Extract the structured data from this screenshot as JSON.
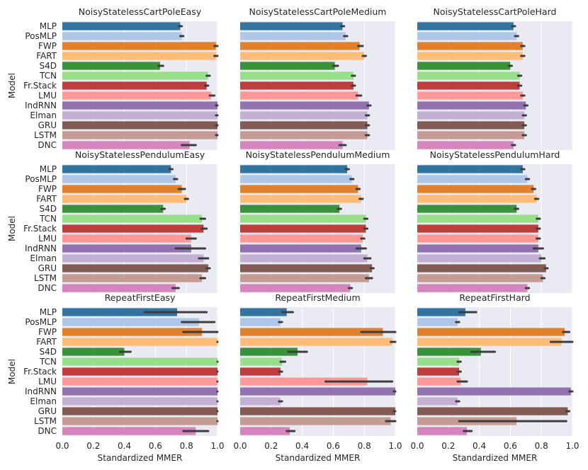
{
  "chart_data": {
    "type": "bar",
    "orientation": "horizontal",
    "grid": true,
    "xlim": [
      0,
      1.0
    ],
    "xticks": [
      "0.0",
      "0.2",
      "0.4",
      "0.6",
      "0.8",
      "1.0"
    ],
    "xlabel": "Standardized MMER",
    "ylabel": "Model",
    "categories": [
      "MLP",
      "PosMLP",
      "FWP",
      "FART",
      "S4D",
      "TCN",
      "Fr.Stack",
      "LMU",
      "IndRNN",
      "Elman",
      "GRU",
      "LSTM",
      "DNC"
    ],
    "colors": [
      "#3274a1",
      "#aec7e8",
      "#e1812c",
      "#ffbb78",
      "#3a923a",
      "#98df8a",
      "#c03d3e",
      "#ff9896",
      "#9372b2",
      "#c5b0d5",
      "#845b53",
      "#c49c94",
      "#d684bd"
    ],
    "panels": [
      {
        "title": "NoisyStatelessCartPoleEasy",
        "values": [
          0.76,
          0.77,
          0.99,
          0.99,
          0.63,
          0.94,
          0.93,
          0.96,
          1.0,
          1.0,
          1.0,
          1.0,
          0.82
        ],
        "ci": [
          [
            0.75,
            0.77
          ],
          [
            0.76,
            0.78
          ],
          [
            0.98,
            1.0
          ],
          [
            0.98,
            1.0
          ],
          [
            0.62,
            0.65
          ],
          [
            0.93,
            0.95
          ],
          [
            0.92,
            0.94
          ],
          [
            0.95,
            0.98
          ],
          [
            0.99,
            1.0
          ],
          [
            0.99,
            1.0
          ],
          [
            0.99,
            1.0
          ],
          [
            0.99,
            1.0
          ],
          [
            0.77,
            0.86
          ]
        ]
      },
      {
        "title": "NoisyStatelessCartPoleMedium",
        "values": [
          0.66,
          0.68,
          0.77,
          0.8,
          0.61,
          0.73,
          0.73,
          0.76,
          0.83,
          0.82,
          0.82,
          0.82,
          0.66
        ],
        "ci": [
          [
            0.65,
            0.67
          ],
          [
            0.67,
            0.69
          ],
          [
            0.76,
            0.79
          ],
          [
            0.79,
            0.81
          ],
          [
            0.6,
            0.63
          ],
          [
            0.72,
            0.74
          ],
          [
            0.72,
            0.74
          ],
          [
            0.75,
            0.78
          ],
          [
            0.82,
            0.84
          ],
          [
            0.81,
            0.83
          ],
          [
            0.81,
            0.83
          ],
          [
            0.81,
            0.83
          ],
          [
            0.64,
            0.68
          ]
        ]
      },
      {
        "title": "NoisyStatelessCartPoleHard",
        "values": [
          0.62,
          0.64,
          0.68,
          0.68,
          0.6,
          0.66,
          0.66,
          0.68,
          0.7,
          0.69,
          0.69,
          0.69,
          0.62
        ],
        "ci": [
          [
            0.61,
            0.63
          ],
          [
            0.63,
            0.65
          ],
          [
            0.67,
            0.69
          ],
          [
            0.67,
            0.69
          ],
          [
            0.59,
            0.61
          ],
          [
            0.65,
            0.67
          ],
          [
            0.65,
            0.67
          ],
          [
            0.67,
            0.69
          ],
          [
            0.69,
            0.71
          ],
          [
            0.68,
            0.7
          ],
          [
            0.68,
            0.7
          ],
          [
            0.68,
            0.7
          ],
          [
            0.61,
            0.63
          ]
        ]
      },
      {
        "title": "NoisyStatelessPendulumEasy",
        "values": [
          0.7,
          0.73,
          0.77,
          0.8,
          0.65,
          0.9,
          0.91,
          0.83,
          0.83,
          0.91,
          0.94,
          0.9,
          0.73
        ],
        "ci": [
          [
            0.69,
            0.71
          ],
          [
            0.72,
            0.74
          ],
          [
            0.75,
            0.79
          ],
          [
            0.79,
            0.81
          ],
          [
            0.64,
            0.66
          ],
          [
            0.89,
            0.92
          ],
          [
            0.9,
            0.93
          ],
          [
            0.8,
            0.86
          ],
          [
            0.73,
            0.92
          ],
          [
            0.88,
            0.94
          ],
          [
            0.93,
            0.95
          ],
          [
            0.89,
            0.92
          ],
          [
            0.71,
            0.75
          ]
        ]
      },
      {
        "title": "NoisyStatelessPendulumMedium",
        "values": [
          0.69,
          0.72,
          0.76,
          0.78,
          0.64,
          0.81,
          0.81,
          0.79,
          0.78,
          0.82,
          0.85,
          0.83,
          0.71
        ],
        "ci": [
          [
            0.68,
            0.7
          ],
          [
            0.71,
            0.73
          ],
          [
            0.75,
            0.77
          ],
          [
            0.77,
            0.79
          ],
          [
            0.63,
            0.65
          ],
          [
            0.8,
            0.82
          ],
          [
            0.8,
            0.82
          ],
          [
            0.78,
            0.8
          ],
          [
            0.75,
            0.81
          ],
          [
            0.8,
            0.84
          ],
          [
            0.84,
            0.86
          ],
          [
            0.81,
            0.85
          ],
          [
            0.7,
            0.72
          ]
        ]
      },
      {
        "title": "NoisyStatelessPendulumHard",
        "values": [
          0.68,
          0.71,
          0.75,
          0.77,
          0.64,
          0.78,
          0.78,
          0.78,
          0.78,
          0.8,
          0.83,
          0.81,
          0.71
        ],
        "ci": [
          [
            0.67,
            0.69
          ],
          [
            0.7,
            0.72
          ],
          [
            0.74,
            0.76
          ],
          [
            0.76,
            0.78
          ],
          [
            0.63,
            0.65
          ],
          [
            0.77,
            0.79
          ],
          [
            0.77,
            0.79
          ],
          [
            0.77,
            0.79
          ],
          [
            0.75,
            0.81
          ],
          [
            0.79,
            0.82
          ],
          [
            0.82,
            0.84
          ],
          [
            0.8,
            0.82
          ],
          [
            0.7,
            0.72
          ]
        ]
      },
      {
        "title": "RepeatFirstEasy",
        "values": [
          0.74,
          0.88,
          0.9,
          1.0,
          0.4,
          1.0,
          1.0,
          1.0,
          1.0,
          1.0,
          1.0,
          1.0,
          0.86
        ],
        "ci": [
          [
            0.53,
            0.93
          ],
          [
            0.77,
            0.98
          ],
          [
            0.78,
            1.0
          ],
          [
            1.0,
            1.0
          ],
          [
            0.37,
            0.44
          ],
          [
            1.0,
            1.0
          ],
          [
            1.0,
            1.0
          ],
          [
            1.0,
            1.0
          ],
          [
            1.0,
            1.0
          ],
          [
            1.0,
            1.0
          ],
          [
            1.0,
            1.0
          ],
          [
            1.0,
            1.0
          ],
          [
            0.78,
            0.94
          ]
        ]
      },
      {
        "title": "RepeatFirstMedium",
        "values": [
          0.3,
          0.26,
          0.92,
          0.98,
          0.37,
          0.27,
          0.26,
          0.82,
          1.0,
          0.26,
          1.0,
          0.97,
          0.32
        ],
        "ci": [
          [
            0.27,
            0.34
          ],
          [
            0.25,
            0.27
          ],
          [
            0.78,
            1.0
          ],
          [
            0.97,
            1.0
          ],
          [
            0.31,
            0.43
          ],
          [
            0.26,
            0.29
          ],
          [
            0.25,
            0.27
          ],
          [
            0.55,
            0.98
          ],
          [
            0.99,
            1.0
          ],
          [
            0.25,
            0.27
          ],
          [
            0.99,
            1.0
          ],
          [
            0.94,
            1.0
          ],
          [
            0.3,
            0.35
          ]
        ]
      },
      {
        "title": "RepeatFirstHard",
        "values": [
          0.31,
          0.26,
          0.95,
          0.93,
          0.41,
          0.27,
          0.27,
          0.28,
          0.99,
          0.26,
          0.97,
          0.64,
          0.32
        ],
        "ci": [
          [
            0.27,
            0.38
          ],
          [
            0.25,
            0.27
          ],
          [
            0.94,
            0.98
          ],
          [
            0.86,
            1.0
          ],
          [
            0.35,
            0.5
          ],
          [
            0.26,
            0.28
          ],
          [
            0.26,
            0.28
          ],
          [
            0.26,
            0.32
          ],
          [
            0.98,
            1.0
          ],
          [
            0.25,
            0.27
          ],
          [
            0.96,
            0.98
          ],
          [
            0.27,
            0.96
          ],
          [
            0.3,
            0.35
          ]
        ]
      }
    ]
  }
}
